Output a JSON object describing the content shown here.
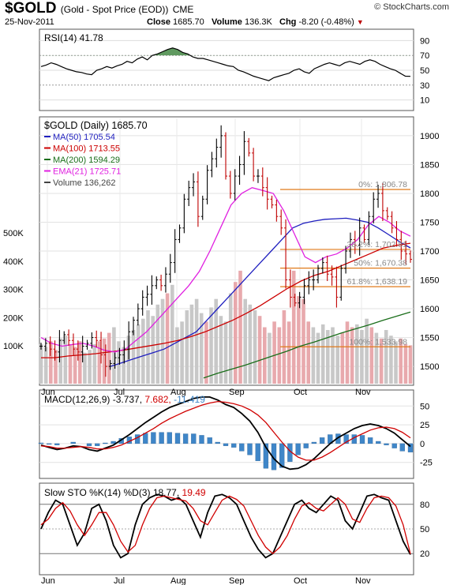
{
  "header": {
    "symbol": "$GOLD",
    "description": "(Gold - Spot Price (EOD))",
    "exchange": "CME",
    "date": "25-Nov-2011",
    "close_label": "Close",
    "close": "1685.70",
    "volume_label": "Volume",
    "volume": "136.3K",
    "chg_label": "Chg",
    "chg": "-8.20 (-0.48%)",
    "chg_arrow": "▼",
    "brand": "© StockCharts.com"
  },
  "colors": {
    "ma50": "#1f1fbf",
    "ma100": "#cc0000",
    "ma200": "#1a6e1a",
    "ema21": "#e020e0",
    "fib": "#e07a1a",
    "vol_up": "#c8c8c8",
    "vol_down": "#e8a9ad",
    "macd_hist": "#3f86c8",
    "rsi_fill": "#4f8f4f"
  },
  "chart_data": [
    {
      "type": "line",
      "panel": "rsi",
      "legend": "RSI(14) 41.78",
      "ylim": [
        0,
        100
      ],
      "yticks": [
        "90",
        "70",
        "50",
        "30",
        "10"
      ],
      "series": [
        {
          "name": "RSI(14)",
          "values": [
            55,
            57,
            60,
            58,
            55,
            52,
            50,
            48,
            47,
            45,
            44,
            50,
            52,
            55,
            53,
            56,
            58,
            62,
            60,
            65,
            68,
            64,
            70,
            72,
            75,
            78,
            80,
            78,
            74,
            72,
            68,
            66,
            66,
            64,
            62,
            60,
            58,
            56,
            55,
            50,
            48,
            45,
            42,
            40,
            38,
            36,
            40,
            42,
            44,
            46,
            50,
            52,
            48,
            46,
            52,
            55,
            58,
            60,
            58,
            56,
            60,
            62,
            60,
            58,
            62,
            64,
            62,
            58,
            55,
            52,
            50,
            46,
            42,
            41.78
          ]
        }
      ]
    },
    {
      "type": "line",
      "panel": "price",
      "title": "$GOLD (Daily) 1685.70",
      "ylim": [
        1470,
        1930
      ],
      "yticks": [
        "1900",
        "1850",
        "1800",
        "1750",
        "1700",
        "1650",
        "1600",
        "1550",
        "1500"
      ],
      "volume_ticks": [
        "500K",
        "400K",
        "300K",
        "200K",
        "100K"
      ],
      "legend": [
        {
          "label": "MA(50) 1705.54",
          "color": "#1f1fbf"
        },
        {
          "label": "MA(100) 1713.55",
          "color": "#cc0000"
        },
        {
          "label": "MA(200) 1594.29",
          "color": "#1a6e1a"
        },
        {
          "label": "EMA(21) 1725.71",
          "color": "#e020e0"
        },
        {
          "label": "Volume 136,262",
          "color": "#444444"
        }
      ],
      "fib_levels": [
        {
          "label": "0%: 1,806.78",
          "value": 1806.78
        },
        {
          "label": "38.2%: 1,702.81",
          "value": 1702.81
        },
        {
          "label": "50%: 1,670.38",
          "value": 1670.38
        },
        {
          "label": "61.8%: 1,638.19",
          "value": 1638.19
        },
        {
          "label": "100%: 1,533.98",
          "value": 1533.98
        }
      ],
      "close": [
        1535,
        1540,
        1530,
        1525,
        1545,
        1555,
        1545,
        1530,
        1525,
        1535,
        1540,
        1550,
        1545,
        1520,
        1500,
        1505,
        1515,
        1520,
        1530,
        1560,
        1580,
        1600,
        1620,
        1625,
        1640,
        1650,
        1640,
        1660,
        1680,
        1720,
        1740,
        1790,
        1810,
        1820,
        1760,
        1790,
        1840,
        1860,
        1880,
        1900,
        1830,
        1800,
        1830,
        1850,
        1890,
        1870,
        1830,
        1830,
        1810,
        1790,
        1780,
        1760,
        1740,
        1650,
        1620,
        1610,
        1620,
        1640,
        1650,
        1650,
        1670,
        1680,
        1660,
        1655,
        1620,
        1670,
        1700,
        1720,
        1710,
        1740,
        1720,
        1760,
        1790,
        1800,
        1770,
        1760,
        1740,
        1720,
        1700,
        1695,
        1685.7
      ],
      "series": [
        {
          "name": "MA(50)",
          "values": [
            1500,
            1506,
            1512,
            1518,
            1524,
            1530,
            1540,
            1550,
            1560,
            1580,
            1600,
            1620,
            1640,
            1660,
            1680,
            1700,
            1720,
            1740,
            1748,
            1752,
            1755,
            1756,
            1757,
            1754,
            1750,
            1740,
            1728,
            1716,
            1705.54
          ]
        },
        {
          "name": "MA(100)",
          "values": [
            1515,
            1515,
            1518,
            1520,
            1522,
            1525,
            1528,
            1532,
            1536,
            1540,
            1545,
            1552,
            1560,
            1570,
            1580,
            1592,
            1605,
            1620,
            1635,
            1648,
            1658,
            1665,
            1675,
            1685,
            1695,
            1705,
            1710,
            1713.55
          ]
        },
        {
          "name": "MA(200)",
          "values": [
            1480,
            1488,
            1495,
            1502,
            1510,
            1518,
            1526,
            1535,
            1542,
            1550,
            1558,
            1565,
            1572,
            1580,
            1587,
            1594.29
          ]
        },
        {
          "name": "EMA(21)",
          "values": [
            1550,
            1540,
            1535,
            1538,
            1540,
            1535,
            1528,
            1525,
            1530,
            1545,
            1560,
            1580,
            1600,
            1620,
            1640,
            1665,
            1700,
            1740,
            1780,
            1800,
            1810,
            1805,
            1800,
            1770,
            1730,
            1690,
            1680,
            1690,
            1695,
            1705,
            1720,
            1745,
            1760,
            1750,
            1735,
            1725.71
          ]
        },
        {
          "name": "Volume",
          "values": [
            140,
            130,
            150,
            120,
            160,
            170,
            140,
            130,
            150,
            110,
            120,
            140,
            150,
            160,
            180,
            200,
            150,
            130,
            170,
            190,
            210,
            230,
            260,
            240,
            280,
            300,
            320,
            350,
            200,
            220,
            260,
            280,
            300,
            250,
            220,
            270,
            300,
            240,
            220,
            320,
            360,
            400,
            300,
            280,
            260,
            240,
            200,
            180,
            220,
            200,
            260,
            220,
            400,
            310,
            300,
            220,
            200,
            180,
            210,
            190,
            200,
            170,
            180,
            220,
            200,
            210,
            190,
            230,
            200,
            180,
            160,
            190,
            170,
            150,
            160,
            140,
            136
          ]
        }
      ]
    },
    {
      "type": "line",
      "panel": "macd",
      "legend_name": "MACD(12,26,9)",
      "legend_macd": "-3.737",
      "legend_signal": "7.682",
      "legend_hist": "-11.419",
      "ylim": [
        -40,
        65
      ],
      "yticks": [
        "50",
        "25",
        "0",
        "-25"
      ],
      "series": [
        {
          "name": "MACD",
          "values": [
            -2,
            -5,
            -8,
            -6,
            -3,
            -4,
            -8,
            -10,
            -6,
            -2,
            5,
            12,
            20,
            28,
            35,
            42,
            48,
            52,
            56,
            60,
            62,
            62,
            58,
            52,
            48,
            40,
            30,
            15,
            -5,
            -20,
            -30,
            -34,
            -33,
            -28,
            -20,
            -10,
            0,
            8,
            14,
            20,
            24,
            26,
            24,
            20,
            14,
            5,
            -3.737
          ]
        },
        {
          "name": "Signal",
          "values": [
            -3,
            -4,
            -6,
            -6,
            -5,
            -4,
            -5,
            -7,
            -7,
            -5,
            -2,
            3,
            8,
            14,
            20,
            27,
            33,
            38,
            43,
            47,
            51,
            54,
            56,
            55,
            53,
            50,
            45,
            38,
            28,
            15,
            2,
            -10,
            -18,
            -22,
            -22,
            -18,
            -12,
            -5,
            2,
            8,
            13,
            18,
            21,
            22,
            20,
            15,
            7.682
          ]
        },
        {
          "name": "Histogram",
          "values": [
            1,
            -1,
            -2,
            0,
            2,
            0,
            -3,
            -3,
            1,
            3,
            7,
            9,
            12,
            14,
            15,
            15,
            15,
            14,
            13,
            13,
            11,
            8,
            2,
            -3,
            -5,
            -10,
            -15,
            -23,
            -33,
            -35,
            -32,
            -24,
            -15,
            -6,
            2,
            8,
            12,
            13,
            12,
            12,
            11,
            8,
            3,
            -2,
            -6,
            -10,
            -11.419
          ]
        }
      ]
    },
    {
      "type": "line",
      "panel": "stochastic",
      "legend_name": "Slow STO %K(14) %D(3)",
      "legend_k": "18.77",
      "legend_d": "19.49",
      "ylim": [
        0,
        100
      ],
      "yticks": [
        "80",
        "50",
        "20"
      ],
      "series": [
        {
          "name": "%K",
          "values": [
            50,
            70,
            85,
            80,
            55,
            30,
            45,
            75,
            80,
            60,
            30,
            15,
            20,
            55,
            80,
            88,
            92,
            90,
            85,
            88,
            80,
            60,
            40,
            70,
            90,
            92,
            88,
            80,
            60,
            40,
            25,
            15,
            20,
            40,
            60,
            80,
            85,
            75,
            70,
            80,
            90,
            85,
            60,
            50,
            70,
            90,
            92,
            88,
            85,
            60,
            35,
            18.77
          ]
        },
        {
          "name": "%D",
          "values": [
            55,
            62,
            75,
            82,
            72,
            55,
            42,
            55,
            70,
            70,
            55,
            35,
            22,
            30,
            55,
            75,
            88,
            90,
            88,
            86,
            84,
            75,
            60,
            55,
            70,
            85,
            90,
            86,
            78,
            60,
            42,
            28,
            20,
            28,
            42,
            62,
            78,
            82,
            75,
            72,
            80,
            88,
            80,
            62,
            58,
            75,
            88,
            90,
            88,
            78,
            55,
            19.49
          ]
        }
      ]
    }
  ],
  "months": [
    "Jun",
    "Jul",
    "Aug",
    "Sep",
    "Oct",
    "Nov"
  ]
}
